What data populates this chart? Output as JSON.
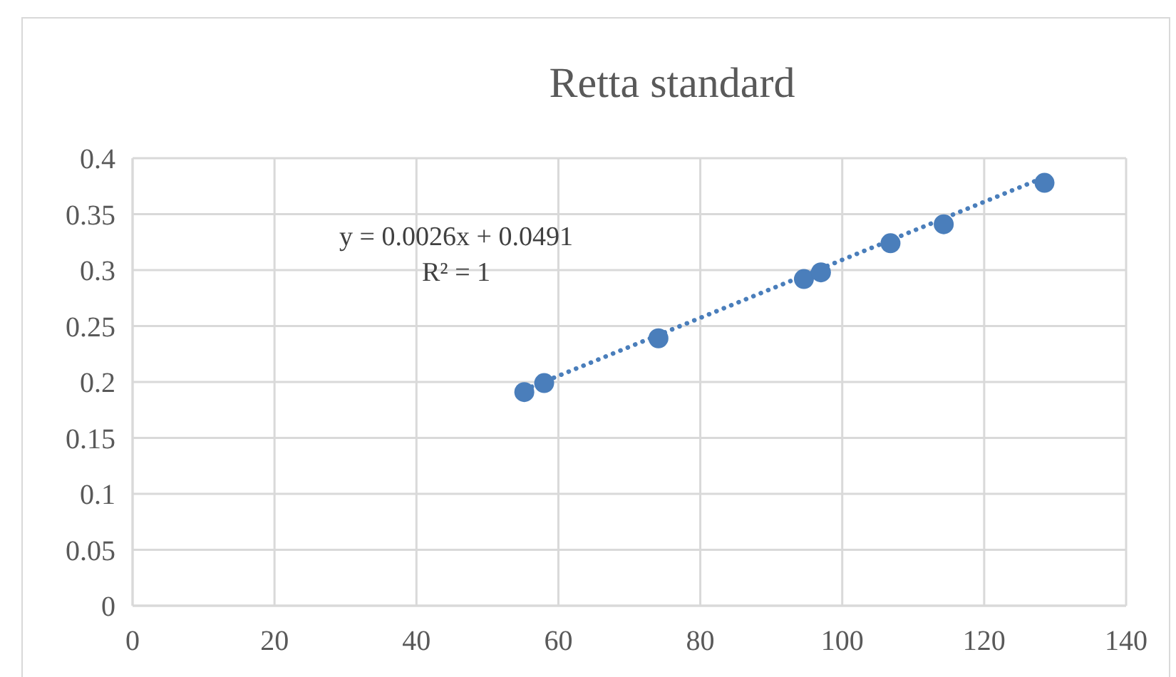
{
  "chart_data": {
    "type": "scatter",
    "title": "Retta standard",
    "xlim": [
      0,
      140
    ],
    "xticks": [
      0,
      20,
      40,
      60,
      80,
      100,
      120,
      140
    ],
    "ylim": [
      0,
      0.4
    ],
    "yticks": [
      0,
      0.05,
      0.1,
      0.15,
      0.2,
      0.25,
      0.3,
      0.35,
      0.4
    ],
    "grid": true,
    "annotations": [
      "y = 0.0026x + 0.0491",
      "R² = 1"
    ],
    "series": [
      {
        "color": "#4a7ebb",
        "marker": "circle",
        "x": [
          55.2,
          58.0,
          74.1,
          94.6,
          97.0,
          106.8,
          114.3,
          128.5
        ],
        "values": [
          0.191,
          0.199,
          0.239,
          0.292,
          0.298,
          0.324,
          0.341,
          0.378
        ]
      },
      {
        "type": "line",
        "color": "#4a7ebb",
        "marker": "none",
        "line_style": "dotted",
        "x": [
          55.2,
          128.5
        ],
        "values": [
          0.193,
          0.383
        ]
      }
    ]
  }
}
